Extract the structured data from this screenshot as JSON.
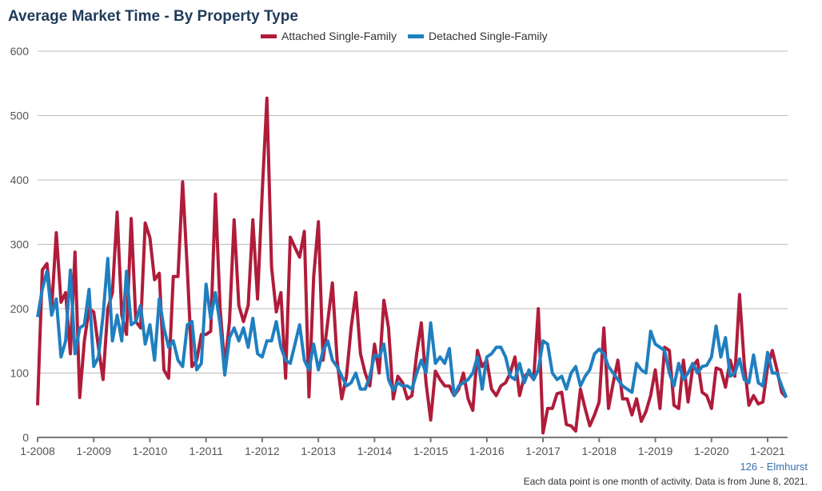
{
  "chart_data": {
    "type": "line",
    "title": "Average Market Time - By Property Type",
    "x_start": "1-2008",
    "x_frequency": "monthly",
    "x_tick_labels": [
      "1-2008",
      "1-2009",
      "1-2010",
      "1-2011",
      "1-2012",
      "1-2013",
      "1-2014",
      "1-2015",
      "1-2016",
      "1-2017",
      "1-2018",
      "1-2019",
      "1-2020",
      "1-2021"
    ],
    "y_ticks": [
      0,
      100,
      200,
      300,
      400,
      500,
      600
    ],
    "ylim": [
      0,
      600
    ],
    "grid": true,
    "legend_position": "top",
    "series": [
      {
        "name": "Attached Single-Family",
        "color": "#b01c3a",
        "values": [
          50,
          260,
          270,
          200,
          318,
          210,
          225,
          130,
          288,
          62,
          150,
          200,
          195,
          140,
          90,
          200,
          225,
          350,
          190,
          160,
          340,
          180,
          170,
          333,
          310,
          245,
          255,
          105,
          92,
          250,
          250,
          397,
          260,
          110,
          120,
          160,
          160,
          165,
          378,
          200,
          110,
          180,
          338,
          205,
          180,
          205,
          338,
          215,
          380,
          527,
          265,
          195,
          225,
          92,
          311,
          295,
          280,
          320,
          63,
          250,
          335,
          120,
          180,
          240,
          120,
          60,
          95,
          170,
          225,
          130,
          100,
          80,
          145,
          100,
          213,
          170,
          60,
          95,
          85,
          60,
          65,
          130,
          178,
          85,
          27,
          103,
          90,
          80,
          80,
          65,
          75,
          100,
          60,
          42,
          135,
          110,
          120,
          75,
          65,
          80,
          85,
          100,
          125,
          65,
          95,
          100,
          90,
          200,
          7,
          45,
          45,
          68,
          70,
          20,
          18,
          10,
          75,
          45,
          18,
          35,
          55,
          170,
          45,
          85,
          120,
          60,
          60,
          35,
          60,
          25,
          40,
          65,
          105,
          45,
          140,
          135,
          50,
          45,
          120,
          55,
          110,
          120,
          70,
          65,
          45,
          108,
          105,
          78,
          120,
          95,
          222,
          115,
          50,
          65,
          52,
          55,
          110,
          135,
          105,
          70,
          62
        ]
      },
      {
        "name": "Detached Single-Family",
        "color": "#1f7fc0",
        "values": [
          187,
          230,
          258,
          190,
          215,
          125,
          150,
          260,
          130,
          170,
          175,
          230,
          110,
          125,
          190,
          278,
          150,
          190,
          150,
          258,
          175,
          180,
          205,
          145,
          175,
          120,
          215,
          170,
          140,
          150,
          120,
          110,
          175,
          180,
          105,
          115,
          238,
          185,
          225,
          175,
          97,
          155,
          170,
          150,
          170,
          140,
          185,
          130,
          125,
          150,
          150,
          180,
          140,
          120,
          115,
          145,
          175,
          120,
          105,
          145,
          105,
          135,
          150,
          120,
          110,
          95,
          80,
          85,
          100,
          75,
          75,
          95,
          128,
          125,
          145,
          90,
          73,
          85,
          80,
          80,
          75,
          100,
          120,
          100,
          178,
          115,
          125,
          115,
          138,
          65,
          80,
          85,
          90,
          100,
          125,
          75,
          125,
          130,
          140,
          140,
          125,
          95,
          90,
          115,
          85,
          105,
          90,
          105,
          150,
          145,
          100,
          90,
          95,
          75,
          100,
          110,
          80,
          95,
          105,
          130,
          137,
          130,
          110,
          100,
          90,
          80,
          75,
          70,
          115,
          105,
          100,
          165,
          145,
          140,
          135,
          100,
          80,
          115,
          90,
          100,
          115,
          100,
          110,
          112,
          125,
          173,
          125,
          155,
          95,
          100,
          122,
          90,
          85,
          128,
          85,
          80,
          132,
          100,
          100,
          80,
          62
        ]
      }
    ]
  },
  "footer": {
    "area_label": "126 - Elmhurst",
    "note": "Each data point is one month of activity. Data is from June 8, 2021."
  }
}
